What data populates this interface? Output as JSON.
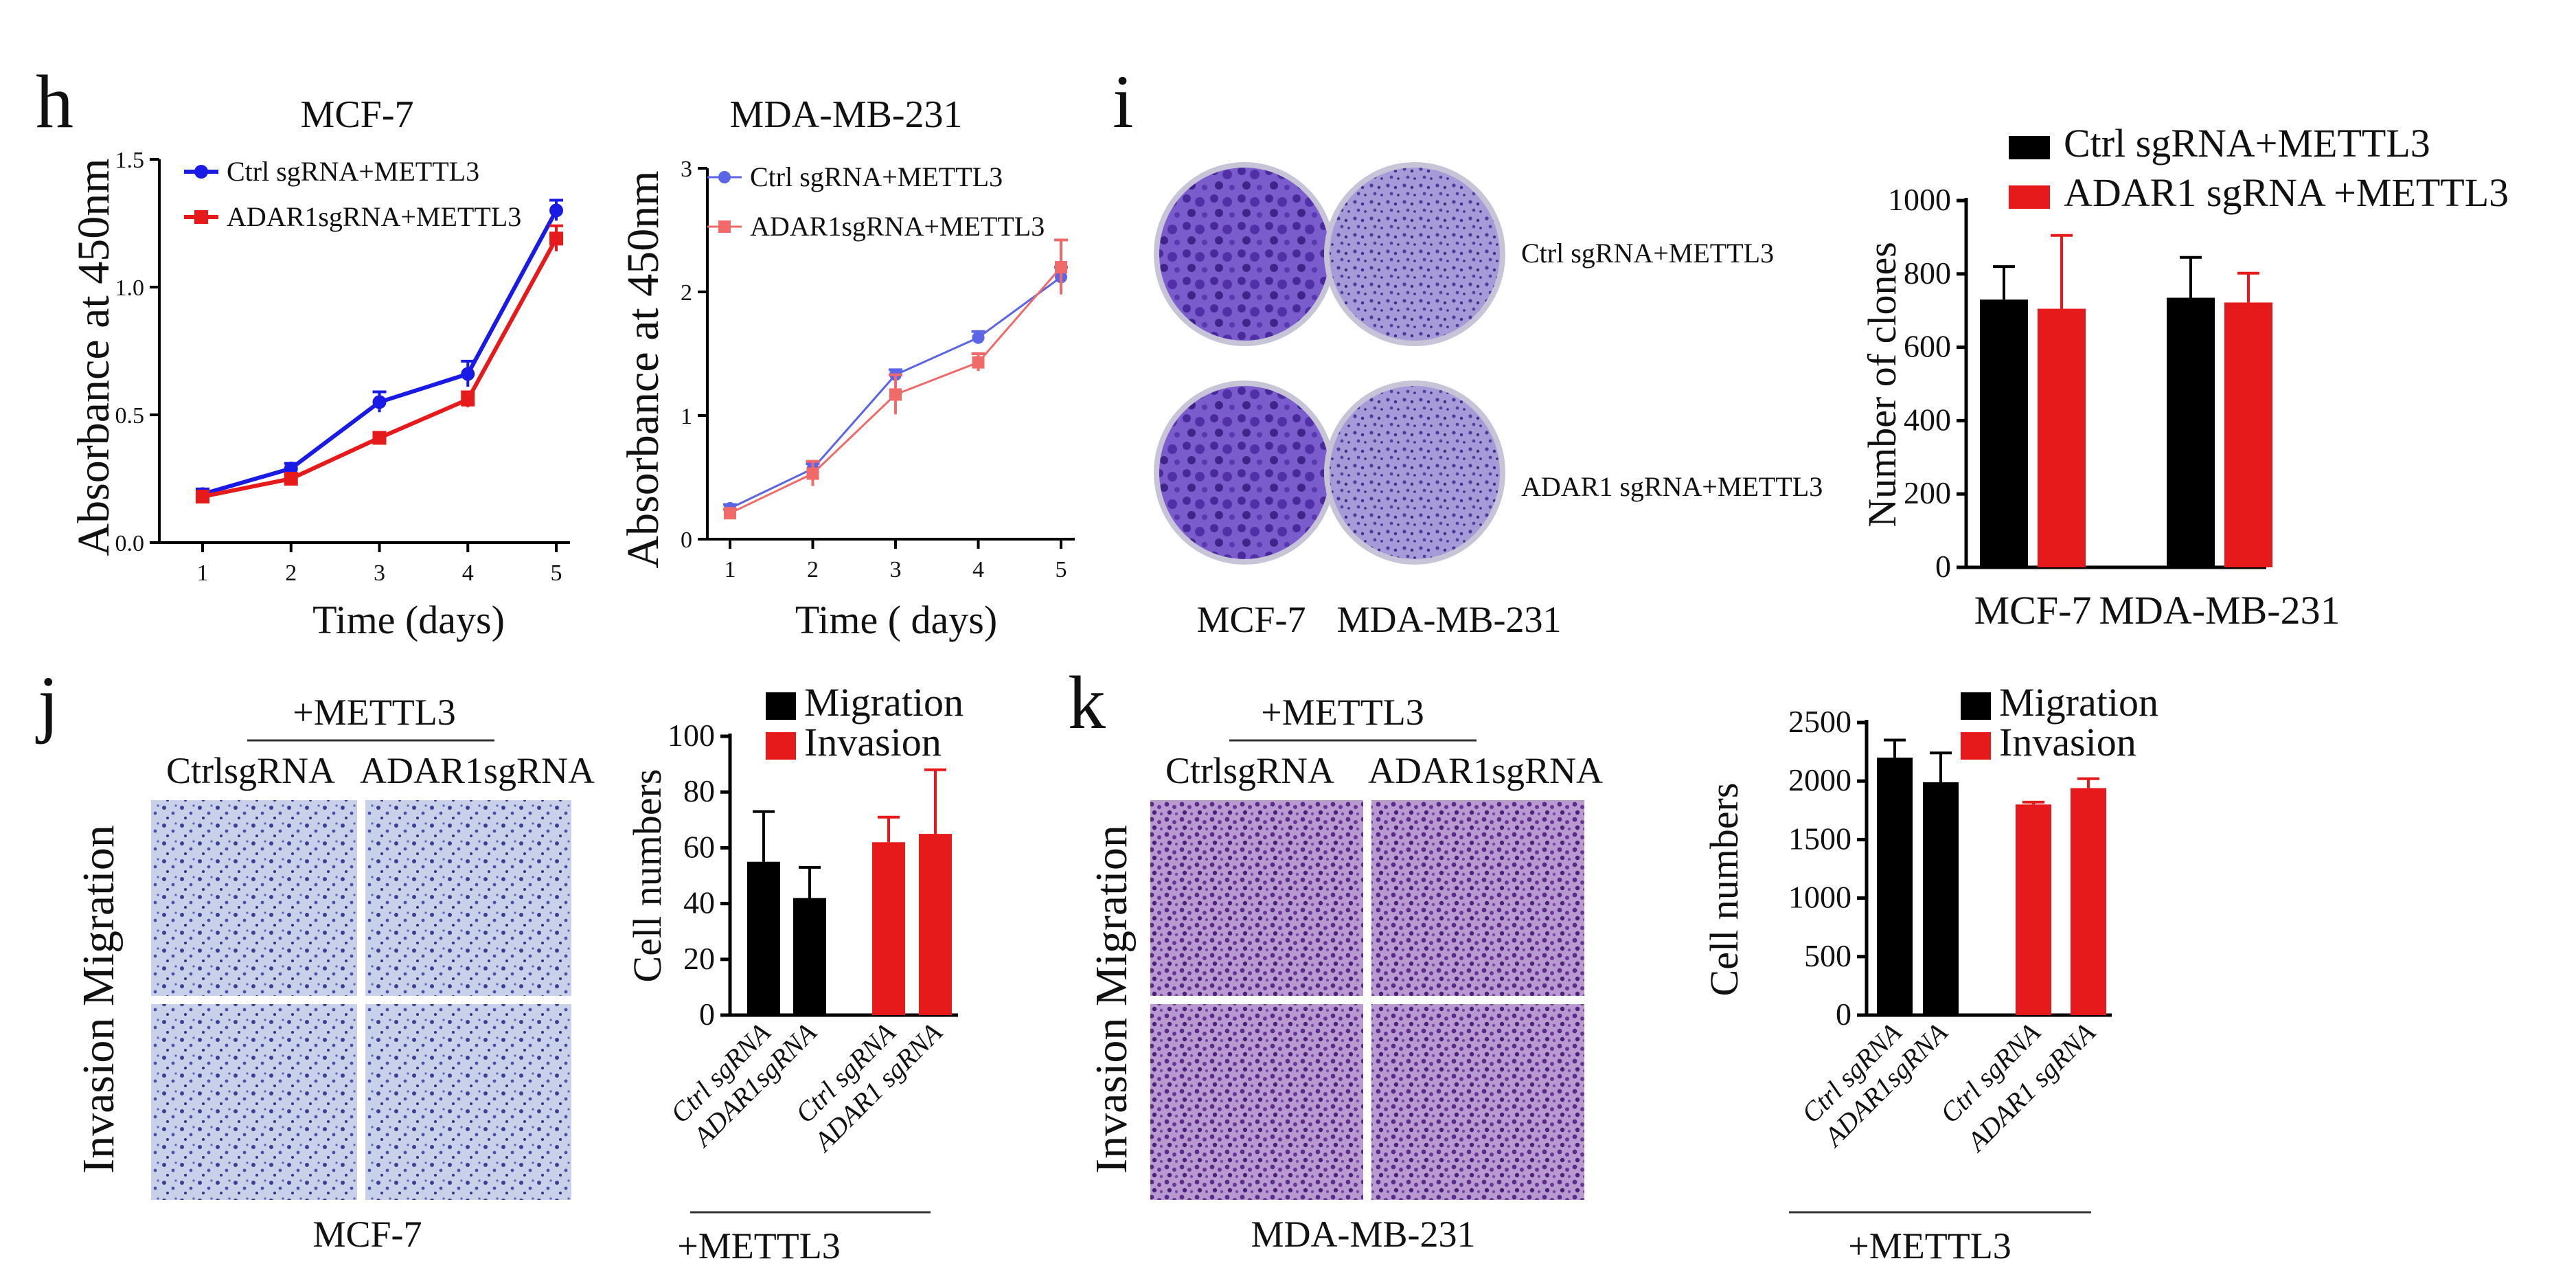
{
  "panels": {
    "h": "h",
    "i": "i",
    "j": "j",
    "k": "k"
  },
  "colors": {
    "blue": "#1a1ae6",
    "red": "#e61a1a",
    "lightblue": "#5a66e6",
    "lightred": "#f06a6a",
    "black": "#000000",
    "crystal_violet": "#6a3fc0",
    "plate_rim": "#c8c4d8"
  },
  "chart_data": [
    {
      "id": "h1",
      "type": "line",
      "title": "MCF-7",
      "xlabel": "Time (days)",
      "ylabel": "Absorbance at 450nm",
      "x": [
        1,
        2,
        3,
        4,
        5
      ],
      "ylim": [
        0,
        1.5
      ],
      "yticks": [
        "0.0",
        "0.5",
        "1.0",
        "1.5"
      ],
      "series": [
        {
          "name": "Ctrl sgRNA+METTL3",
          "color": "#1a1ae6",
          "marker": "circle",
          "values": [
            0.19,
            0.29,
            0.55,
            0.66,
            1.3
          ],
          "err": [
            0.02,
            0.02,
            0.04,
            0.05,
            0.04
          ]
        },
        {
          "name": "ADAR1sgRNA+METTL3",
          "color": "#e61a1a",
          "marker": "square",
          "values": [
            0.18,
            0.25,
            0.41,
            0.56,
            1.19
          ],
          "err": [
            0.02,
            0.02,
            0.02,
            0.03,
            0.05
          ]
        }
      ]
    },
    {
      "id": "h2",
      "type": "line",
      "title": "MDA-MB-231",
      "xlabel": "Time ( days)",
      "ylabel": "Absorbance at 450nm",
      "x": [
        1,
        2,
        3,
        4,
        5
      ],
      "ylim": [
        0,
        3
      ],
      "yticks": [
        "0",
        "1",
        "2",
        "3"
      ],
      "series": [
        {
          "name": "Ctrl sgRNA+METTL3",
          "color": "#5a66e6",
          "marker": "circle",
          "values": [
            0.25,
            0.57,
            1.33,
            1.63,
            2.12
          ],
          "err": [
            0.03,
            0.04,
            0.04,
            0.05,
            0.08
          ]
        },
        {
          "name": "ADAR1sgRNA+METTL3",
          "color": "#f06a6a",
          "marker": "square",
          "values": [
            0.21,
            0.53,
            1.17,
            1.43,
            2.2
          ],
          "err": [
            0.03,
            0.1,
            0.16,
            0.07,
            0.22
          ]
        }
      ]
    },
    {
      "id": "i",
      "type": "bar",
      "ylabel": "Number of clones",
      "categories": [
        "MCF-7",
        "MDA-MB-231"
      ],
      "ylim": [
        0,
        1000
      ],
      "yticks": [
        "0",
        "200",
        "400",
        "600",
        "800",
        "1000"
      ],
      "series": [
        {
          "name": "Ctrl sgRNA+METTL3",
          "color": "#000000",
          "values": [
            730,
            735
          ],
          "err": [
            90,
            110
          ]
        },
        {
          "name": "ADAR1 sgRNA +METTL3",
          "color": "#e61a1a",
          "values": [
            705,
            722
          ],
          "err": [
            200,
            80
          ]
        }
      ]
    },
    {
      "id": "j",
      "type": "bar",
      "ylabel": "Cell numbers",
      "categories": [
        "Ctrl sgRNA",
        "ADAR1sgRNA",
        "Ctrl sgRNA",
        "ADAR1 sgRNA"
      ],
      "group_label": "+METTL3",
      "ylim": [
        0,
        100
      ],
      "yticks": [
        "0",
        "20",
        "40",
        "60",
        "80",
        "100"
      ],
      "legend": [
        {
          "name": "Migration",
          "color": "#000000"
        },
        {
          "name": "Invasion",
          "color": "#e61a1a"
        }
      ],
      "values": [
        55,
        42,
        62,
        65
      ],
      "err": [
        18,
        11,
        9,
        23
      ],
      "bar_colors": [
        "#000000",
        "#000000",
        "#e61a1a",
        "#e61a1a"
      ]
    },
    {
      "id": "k",
      "type": "bar",
      "ylabel": "Cell numbers",
      "categories": [
        "Ctrl sgRNA",
        "ADAR1sgRNA",
        "Ctrl sgRNA",
        "ADAR1 sgRNA"
      ],
      "group_label": "+METTL3",
      "ylim": [
        0,
        2500
      ],
      "yticks": [
        "0",
        "500",
        "1000",
        "1500",
        "2000",
        "2500"
      ],
      "legend": [
        {
          "name": "Migration",
          "color": "#000000"
        },
        {
          "name": "Invasion",
          "color": "#e61a1a"
        }
      ],
      "values": [
        2200,
        1990,
        1800,
        1940
      ],
      "err": [
        150,
        250,
        20,
        80
      ],
      "bar_colors": [
        "#000000",
        "#000000",
        "#e61a1a",
        "#e61a1a"
      ]
    }
  ],
  "panel_i_images": {
    "row_labels": [
      "Ctrl sgRNA+METTL3",
      "ADAR1 sgRNA+METTL3"
    ],
    "col_labels": [
      "MCF-7",
      "MDA-MB-231"
    ]
  },
  "panel_j_images": {
    "group_label": "+METTL3",
    "col_labels": [
      "CtrlsgRNA",
      "ADAR1sgRNA"
    ],
    "row_label": "Invasion Migration",
    "cell_line": "MCF-7"
  },
  "panel_k_images": {
    "group_label": "+METTL3",
    "col_labels": [
      "CtrlsgRNA",
      "ADAR1sgRNA"
    ],
    "row_label": "Invasion Migration",
    "cell_line": "MDA-MB-231"
  }
}
